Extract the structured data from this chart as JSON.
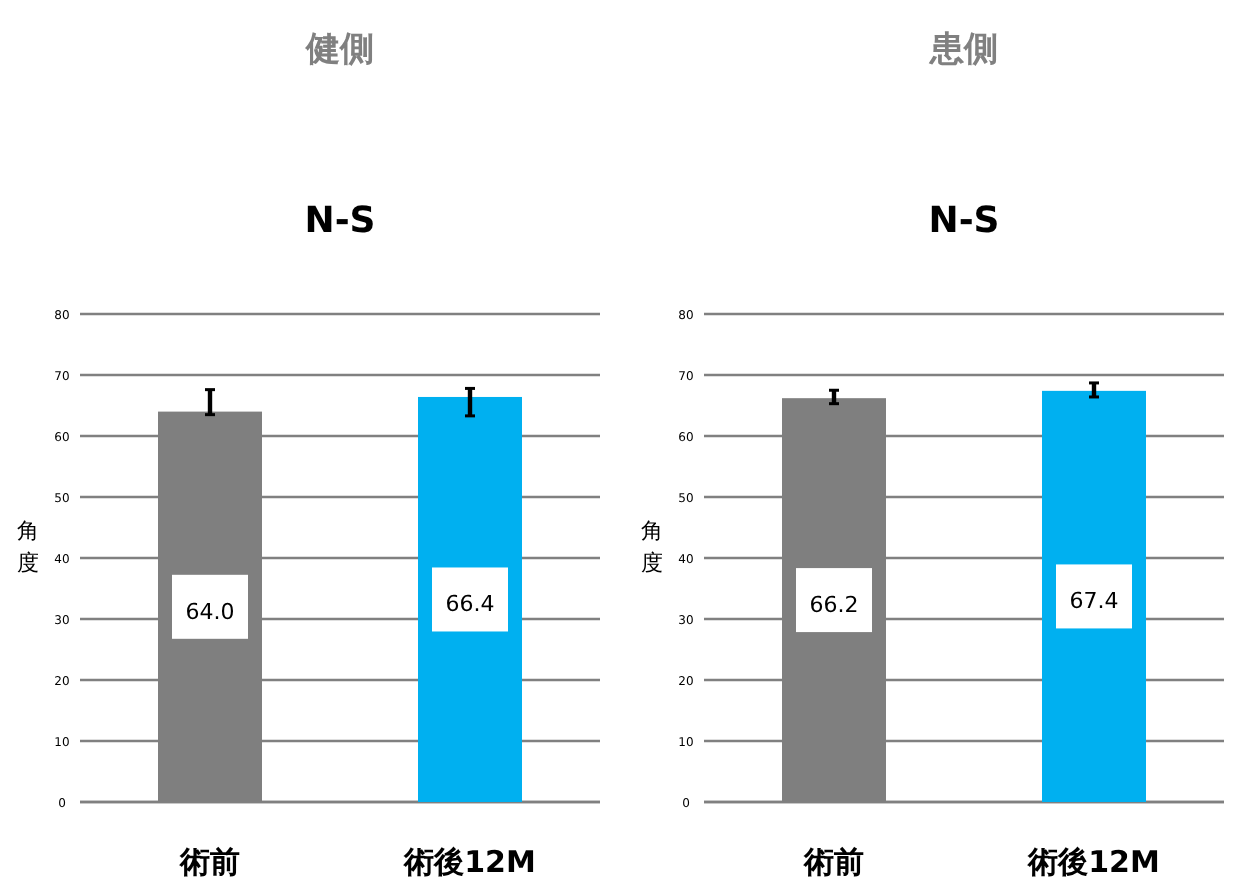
{
  "chart_data": [
    {
      "type": "bar",
      "title": "健側",
      "subtitle": "N-S",
      "ylabel": "角度",
      "categories": [
        "術前",
        "術後12M"
      ],
      "values": [
        64.0,
        66.4
      ],
      "value_labels": [
        "64.0",
        "66.4"
      ],
      "colors": [
        "#7f7f7f",
        "#00b0f0"
      ],
      "errors": [
        [
          63.5,
          67.6
        ],
        [
          63.3,
          67.8
        ]
      ],
      "ylim": [
        0,
        80
      ],
      "yticks": [
        0,
        10,
        20,
        30,
        40,
        50,
        60,
        70,
        80
      ],
      "grid": "y"
    },
    {
      "type": "bar",
      "title": "患側",
      "subtitle": "N-S",
      "ylabel": "角度",
      "categories": [
        "術前",
        "術後12M"
      ],
      "values": [
        66.2,
        67.4
      ],
      "value_labels": [
        "66.2",
        "67.4"
      ],
      "colors": [
        "#7f7f7f",
        "#00b0f0"
      ],
      "errors": [
        [
          65.3,
          67.5
        ],
        [
          66.4,
          68.7
        ]
      ],
      "ylim": [
        0,
        80
      ],
      "yticks": [
        0,
        10,
        20,
        30,
        40,
        50,
        60,
        70,
        80
      ],
      "grid": "y"
    }
  ]
}
